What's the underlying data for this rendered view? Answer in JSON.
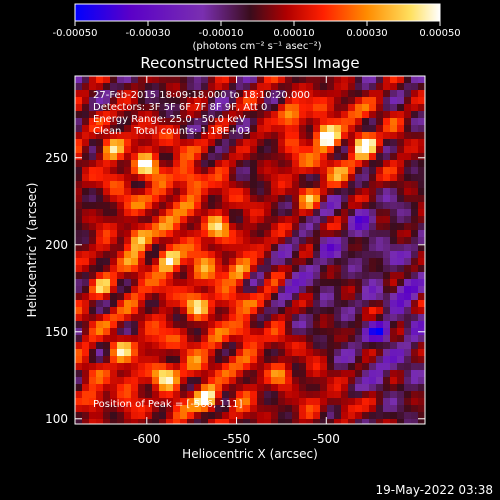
{
  "colorbar": {
    "ticks": [
      "-0.00050",
      "-0.00030",
      "-0.00010",
      "0.00010",
      "0.00030",
      "0.00050"
    ],
    "tick_values": [
      -0.0005,
      -0.0003,
      -0.0001,
      0.0001,
      0.0003,
      0.0005
    ],
    "units": "(photons cm⁻² s⁻¹ asec⁻²)",
    "range": [
      -0.0005,
      0.0005
    ],
    "colors": [
      "#0000ff",
      "#5a00c8",
      "#7a2fb0",
      "#3a0c1c",
      "#b00000",
      "#ff2000",
      "#ff8c00",
      "#ffe060",
      "#ffffff"
    ]
  },
  "title": "Reconstructed RHESSI Image",
  "info": {
    "line1": "27-Feb-2015 18:09:18.000 to 18:10:20.000",
    "line2": "Detectors: 3F 5F 6F 7F 8F 9F, Att 0",
    "line3": "Energy Range: 25.0 - 50.0 keV",
    "line4": "Clean    Total counts: 1.18E+03"
  },
  "peak_text": "Position of Peak = [-566, 111]",
  "timestamp": "19-May-2022 03:38",
  "chart_data": {
    "type": "heatmap",
    "xlabel": "Heliocentric X (arcsec)",
    "ylabel": "Heliocentric Y (arcsec)",
    "xlim": [
      -640,
      -445
    ],
    "ylim": [
      97,
      297
    ],
    "xticks": [
      -600,
      -550,
      -500
    ],
    "yticks": [
      100,
      150,
      200,
      250
    ],
    "xtick_labels": [
      "-600",
      "-550",
      "-500"
    ],
    "ytick_labels": [
      "100",
      "150",
      "200",
      "250"
    ],
    "peak": [
      -566,
      111
    ],
    "grid": "off",
    "bright_sources": [
      {
        "x": -620,
        "y": 255,
        "v": 0.00035
      },
      {
        "x": -600,
        "y": 245,
        "v": 0.0004
      },
      {
        "x": -575,
        "y": 238,
        "v": 0.00038
      },
      {
        "x": -500,
        "y": 262,
        "v": 0.00045
      },
      {
        "x": -478,
        "y": 258,
        "v": 0.00042
      },
      {
        "x": -510,
        "y": 228,
        "v": 0.00033
      },
      {
        "x": -605,
        "y": 205,
        "v": 0.00038
      },
      {
        "x": -588,
        "y": 192,
        "v": 0.0004
      },
      {
        "x": -560,
        "y": 210,
        "v": 0.00035
      },
      {
        "x": -548,
        "y": 185,
        "v": 0.00033
      },
      {
        "x": -625,
        "y": 175,
        "v": 0.00032
      },
      {
        "x": -572,
        "y": 165,
        "v": 0.0004
      },
      {
        "x": -545,
        "y": 150,
        "v": 0.00035
      },
      {
        "x": -615,
        "y": 140,
        "v": 0.00036
      },
      {
        "x": -590,
        "y": 125,
        "v": 0.00042
      },
      {
        "x": -566,
        "y": 111,
        "v": 0.0005
      },
      {
        "x": -630,
        "y": 110,
        "v": 0.00032
      },
      {
        "x": -525,
        "y": 125,
        "v": 0.00028
      },
      {
        "x": -490,
        "y": 108,
        "v": 0.00025
      },
      {
        "x": -470,
        "y": 160,
        "v": 0.0002
      },
      {
        "x": -520,
        "y": 275,
        "v": 0.0003
      }
    ],
    "dark_sources": [
      {
        "x": -470,
        "y": 150,
        "v": -0.00045
      },
      {
        "x": -455,
        "y": 175,
        "v": -0.00035
      },
      {
        "x": -500,
        "y": 200,
        "v": -0.0002
      },
      {
        "x": -480,
        "y": 215,
        "v": -0.00025
      },
      {
        "x": -520,
        "y": 175,
        "v": -0.0002
      },
      {
        "x": -470,
        "y": 120,
        "v": -0.0002
      }
    ]
  }
}
